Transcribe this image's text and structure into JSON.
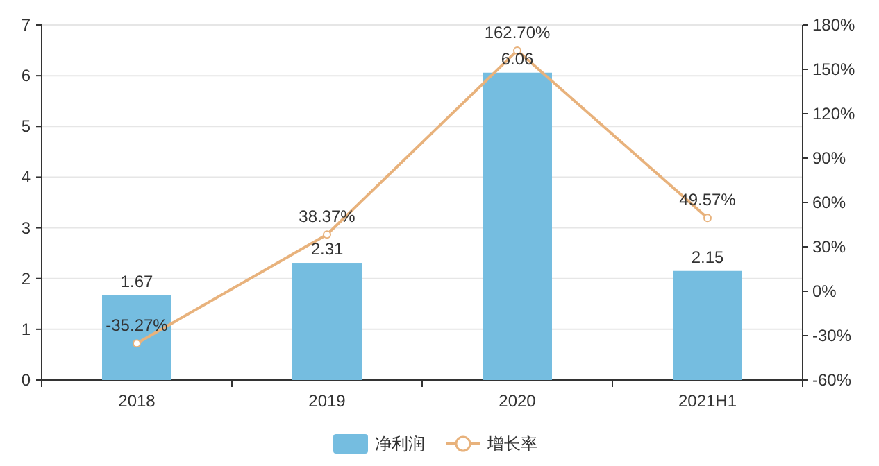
{
  "chart_data": {
    "type": "bar",
    "categories": [
      "2018",
      "2019",
      "2020",
      "2021H1"
    ],
    "series": [
      {
        "name": "净利润",
        "color": "#75bde0",
        "values": [
          1.67,
          2.31,
          6.06,
          2.15
        ],
        "value_labels": [
          "1.67",
          "2.31",
          "6.06",
          "2.15"
        ]
      },
      {
        "type": "line",
        "name": "增长率",
        "color": "#e8b27c",
        "axis": "y2",
        "marker": "circle",
        "values": [
          -35.27,
          38.37,
          162.7,
          49.57
        ],
        "value_labels": [
          "-35.27%",
          "38.37%",
          "162.70%",
          "49.57%"
        ]
      }
    ],
    "ylim": [
      0,
      7
    ],
    "yticks": [
      0,
      1,
      2,
      3,
      4,
      5,
      6,
      7
    ],
    "y2lim": [
      -60,
      180
    ],
    "y2ticks": [
      {
        "value": -60,
        "label": "-60%"
      },
      {
        "value": -30,
        "label": "-30%"
      },
      {
        "value": 0,
        "label": "0%"
      },
      {
        "value": 30,
        "label": "30%"
      },
      {
        "value": 60,
        "label": "60%"
      },
      {
        "value": 90,
        "label": "90%"
      },
      {
        "value": 120,
        "label": "120%"
      },
      {
        "value": 150,
        "label": "150%"
      },
      {
        "value": 180,
        "label": "180%"
      }
    ],
    "grid": "y",
    "legend": "bottom"
  }
}
